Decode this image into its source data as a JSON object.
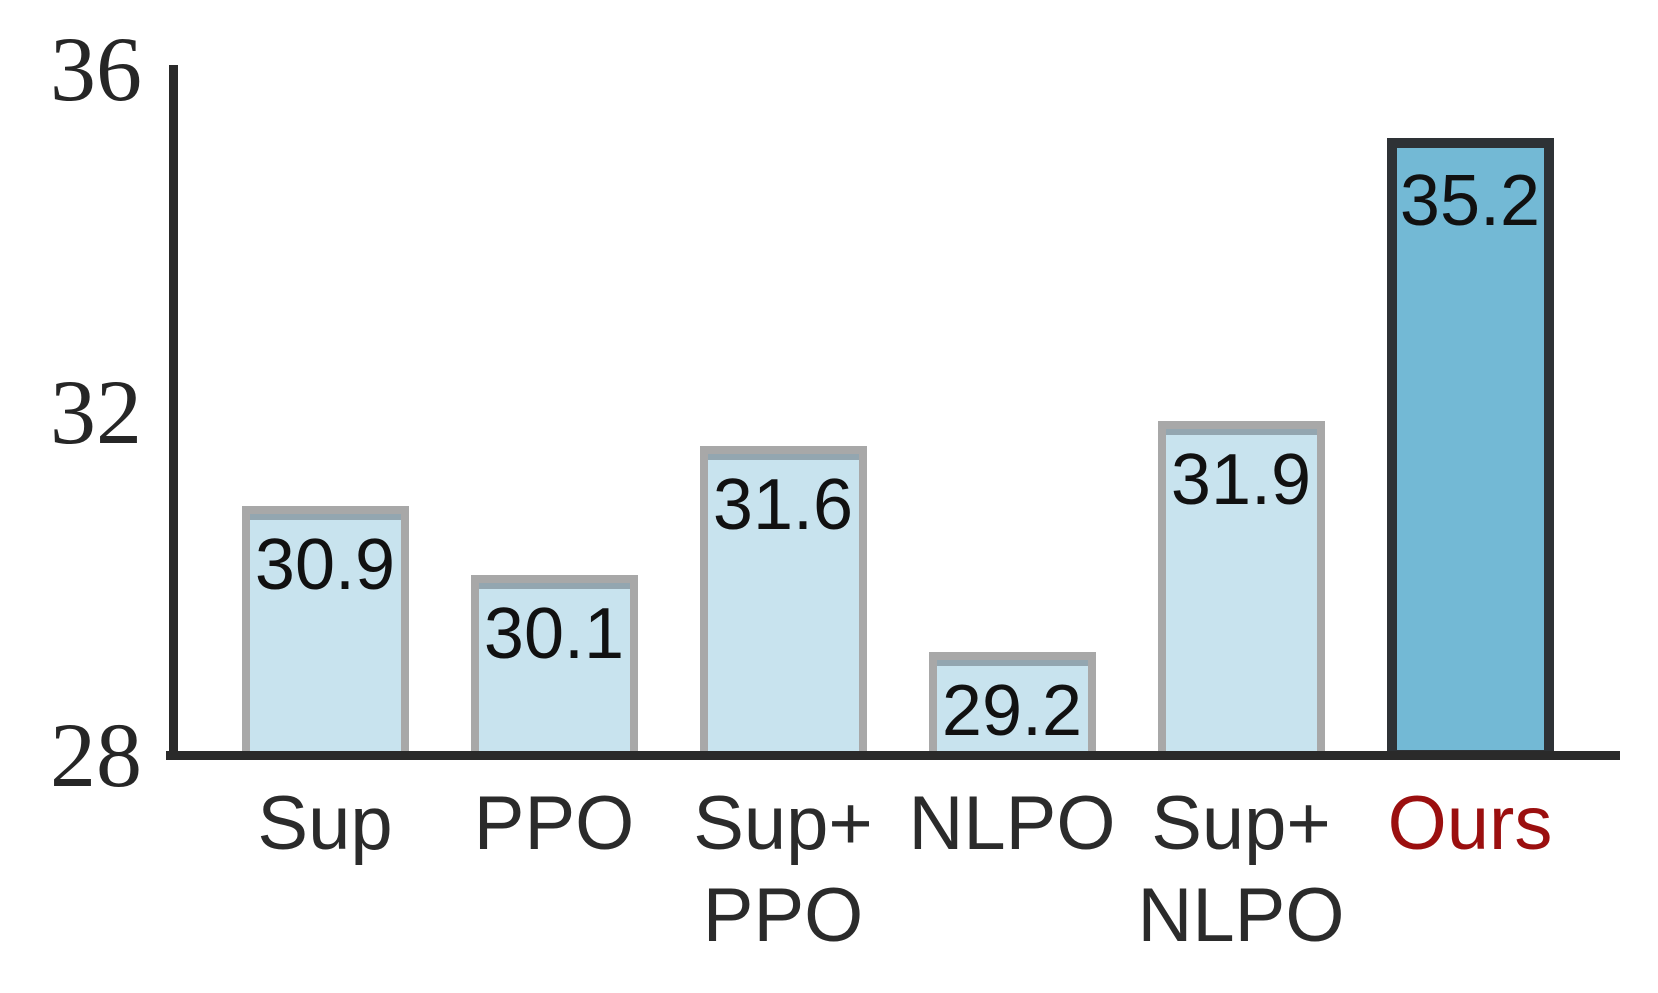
{
  "chart_data": {
    "type": "bar",
    "categories": [
      "Sup",
      "PPO",
      "Sup+\nPPO",
      "NLPO",
      "Sup+\nNLPO",
      "Ours"
    ],
    "values": [
      30.9,
      30.1,
      31.6,
      29.2,
      31.9,
      35.2
    ],
    "value_labels": [
      "30.9",
      "30.1",
      "31.6",
      "29.2",
      "31.9",
      "35.2"
    ],
    "title": "",
    "xlabel": "",
    "ylabel": "",
    "ylim": [
      28,
      36
    ],
    "yticks": [
      28,
      32,
      36
    ],
    "ytick_labels": [
      "28",
      "32",
      "36"
    ],
    "grid": false,
    "legend_position": "none",
    "highlight_index": 5,
    "colors": {
      "bar_fill": "#c8e3ee",
      "bar_border": "#a8a8a8",
      "highlight_fill": "#73b9d5",
      "highlight_border": "#2e3236",
      "axis": "#2a2a2a",
      "value_text": "#111111",
      "tick_text": "#262626",
      "category_text": "#2b2b2b",
      "highlight_category_text": "#9b0f0f"
    }
  }
}
